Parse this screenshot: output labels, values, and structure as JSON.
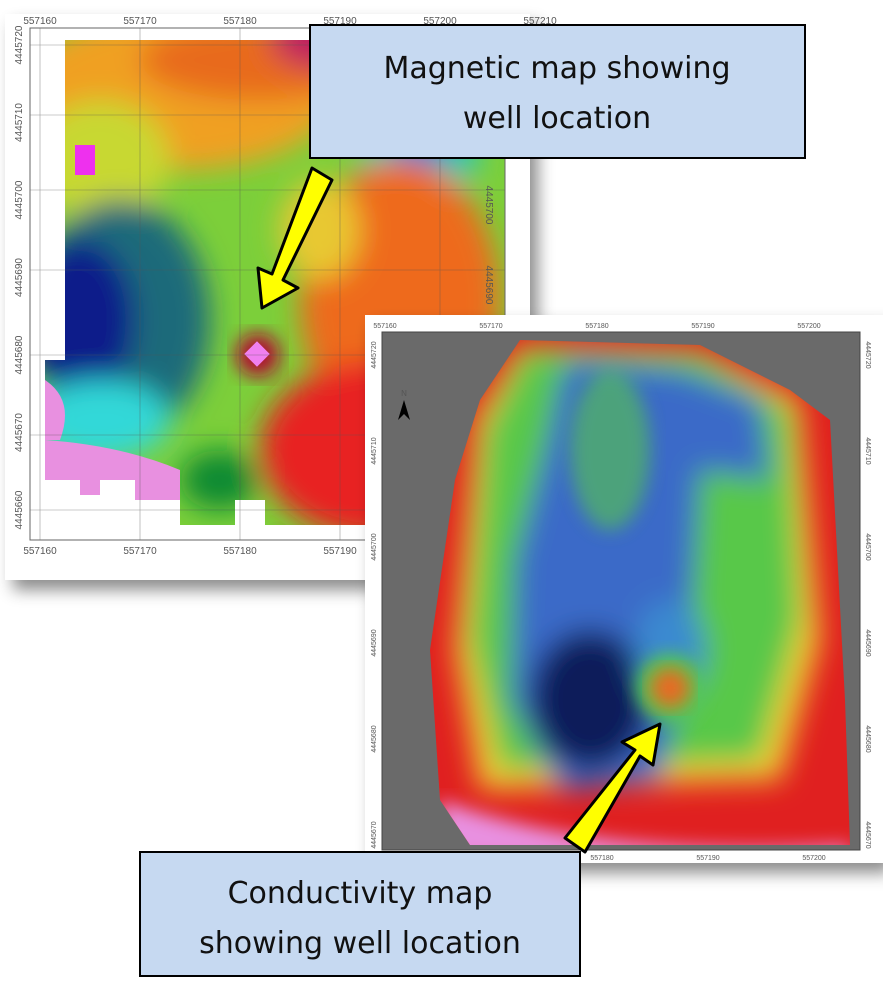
{
  "magnetic_map": {
    "x_top": [
      "557160",
      "557170",
      "557180",
      "557190",
      "557200",
      "557210"
    ],
    "x_bottom": [
      "557160",
      "557170",
      "557180",
      "557190"
    ],
    "y_left": [
      "4445720",
      "4445710",
      "4445700",
      "4445690",
      "4445680",
      "4445670",
      "4445660"
    ],
    "y_right": [
      "4445700",
      "4445690"
    ]
  },
  "conductivity_map": {
    "north": "N",
    "x_top": [
      "557160",
      "557170",
      "557180",
      "557190",
      "557200"
    ],
    "x_bottom": [
      "557180",
      "557190",
      "557200"
    ],
    "y_left": [
      "4445720",
      "4445710",
      "4445700",
      "4445690",
      "4445680",
      "4445670"
    ],
    "y_right": [
      "4445720",
      "4445710",
      "4445700",
      "4445690",
      "4445680",
      "4445670"
    ]
  },
  "callouts": [
    {
      "lines": [
        "Magnetic map showing",
        "well location"
      ]
    },
    {
      "lines": [
        "Conductivity map",
        "showing well location"
      ]
    }
  ]
}
